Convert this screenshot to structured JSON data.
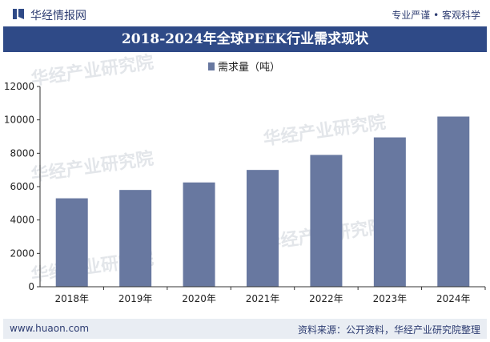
{
  "header": {
    "brand": "华经情报网",
    "tagline": "专业严谨 • 客观科学"
  },
  "chart_title": "2018-2024年全球PEEK行业需求现状",
  "footer": {
    "website": "www.huaon.com",
    "source": "资料来源：公开资料，华经产业研究院整理"
  },
  "colors": {
    "bar": "#6878a0",
    "title_bg": "#2f4a87",
    "footer_bg": "#e9edf3",
    "text_dark": "#2e3d72"
  },
  "chart_data": {
    "type": "bar",
    "title": "2018-2024年全球PEEK行业需求现状",
    "categories": [
      "2018年",
      "2019年",
      "2020年",
      "2021年",
      "2022年",
      "2023年",
      "2024年"
    ],
    "series": [
      {
        "name": "需求量（吨）",
        "values": [
          5300,
          5800,
          6250,
          7000,
          7900,
          8950,
          10200
        ]
      }
    ],
    "legend": "top-center",
    "xlabel": "",
    "ylabel": "",
    "ylim": [
      0,
      12000
    ],
    "yticks": [
      0,
      2000,
      4000,
      6000,
      8000,
      10000,
      12000
    ],
    "grid": false
  }
}
